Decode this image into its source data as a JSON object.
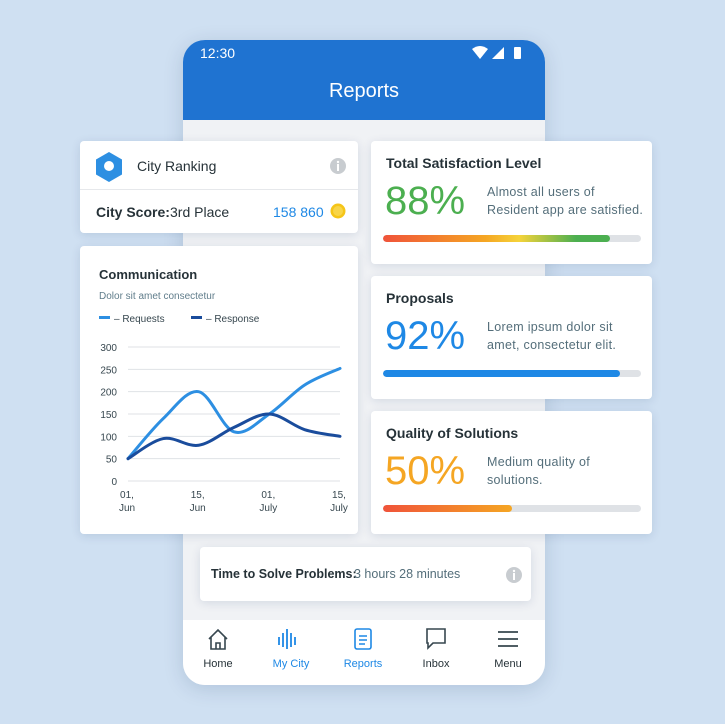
{
  "status_bar": {
    "time": "12:30"
  },
  "header": {
    "title": "Reports"
  },
  "city_ranking": {
    "title": "City Ranking",
    "score_label": "City Score:",
    "place": "3rd Place",
    "score": "158 860"
  },
  "chart_data": {
    "type": "line",
    "title": "Communication",
    "subtitle": "Dolor sit amet consectetur",
    "categories": [
      "01, Jun",
      null,
      "15, Jun",
      null,
      "01, July",
      null,
      "15, July"
    ],
    "series": [
      {
        "name": "– Requests",
        "color": "#2d8fe2",
        "values": [
          50,
          140,
          200,
          110,
          150,
          215,
          252
        ]
      },
      {
        "name": "– Response",
        "color": "#1a4c9c",
        "values": [
          50,
          95,
          80,
          120,
          150,
          115,
          100
        ]
      }
    ],
    "ylim": [
      0,
      300
    ],
    "yticks": [
      0,
      50,
      100,
      150,
      200,
      250,
      300
    ],
    "grid": true
  },
  "metrics": [
    {
      "title": "Total Satisfaction Level",
      "value": 88,
      "label": "88%",
      "color": "#4caf50",
      "text": "Almost all users of Resident app are satisfied."
    },
    {
      "title": "Proposals",
      "value": 92,
      "label": "92%",
      "color": "#1e88e5",
      "text": "Lorem ipsum dolor sit amet, consectetur elit."
    },
    {
      "title": "Quality of Solutions",
      "value": 50,
      "label": "50%",
      "color": "#f5a623",
      "text": "Medium quality of solutions."
    }
  ],
  "time_to_solve": {
    "label": "Time to Solve Problems:",
    "value": "3 hours 28 minutes"
  },
  "nav": [
    {
      "label": "Home"
    },
    {
      "label": "My City"
    },
    {
      "label": "Reports"
    },
    {
      "label": "Inbox"
    },
    {
      "label": "Menu"
    }
  ]
}
